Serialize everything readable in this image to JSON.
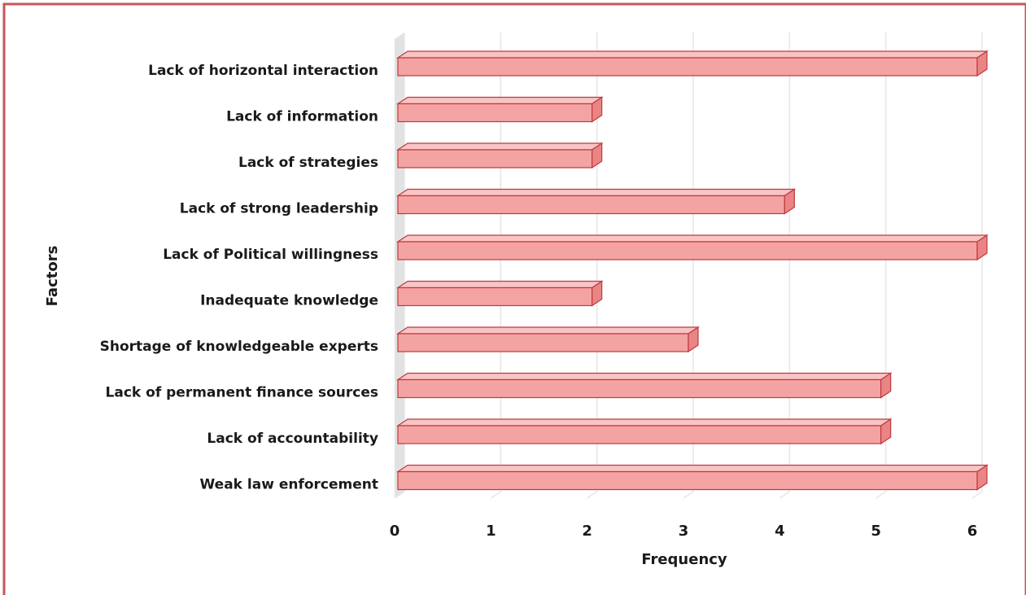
{
  "chart_data": {
    "type": "bar",
    "orientation": "horizontal",
    "style": "3d",
    "categories": [
      "Lack of horizontal interaction",
      "Lack of information",
      "Lack of strategies",
      "Lack of strong leadership",
      "Lack of Political willingness",
      "Inadequate knowledge",
      "Shortage of knowledgeable experts",
      "Lack of permanent finance sources",
      "Lack of  accountability",
      "Weak law enforcement"
    ],
    "values": [
      6,
      2,
      2,
      4,
      6,
      2,
      3,
      5,
      5,
      6
    ],
    "xlabel": "Frequency",
    "ylabel": "Factors",
    "xlim": [
      0,
      6
    ],
    "xticks": [
      "0",
      "1",
      "2",
      "3",
      "4",
      "5",
      "6"
    ],
    "grid": true,
    "legend": "none",
    "colors": {
      "bar_front": "#f4a3a3",
      "bar_top": "#f8c4c4",
      "bar_side": "#e98585",
      "bar_stroke": "#c0393d",
      "frame": "#c9555a",
      "grid": "#e6e6e6",
      "wall": "#dddddd"
    }
  }
}
